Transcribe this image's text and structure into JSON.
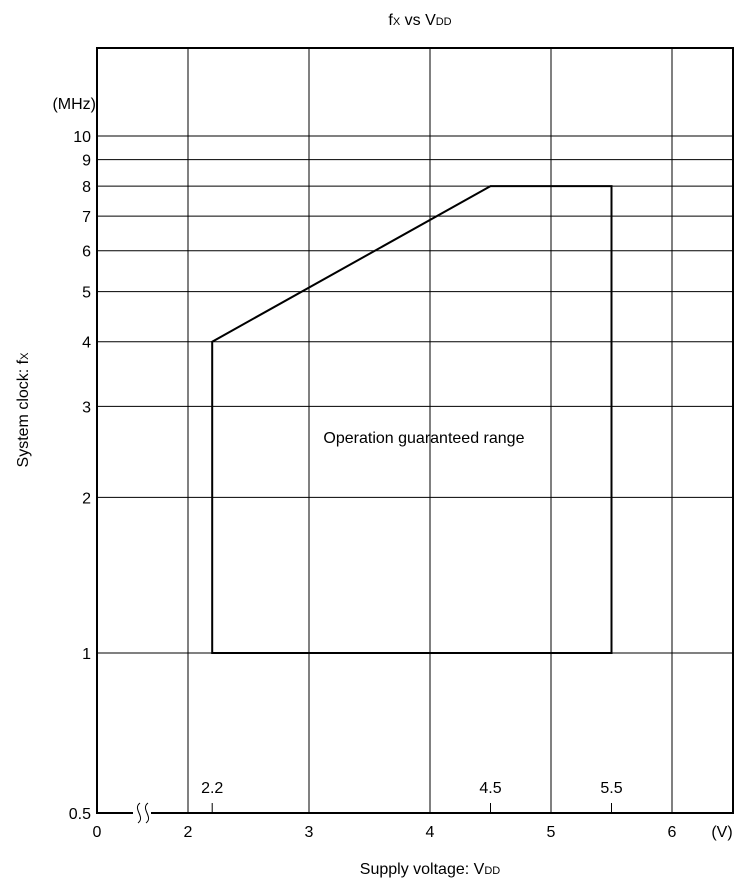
{
  "chart_data": {
    "type": "area",
    "title": "fx vs VDD",
    "title_parts": {
      "main": "f",
      "sub1": "X",
      "mid": " vs V",
      "sub2": "DD"
    },
    "xlabel": "Supply voltage: VDD",
    "xlabel_parts": {
      "main": "Supply voltage: V",
      "sub": "DD"
    },
    "ylabel": "System clock: fX",
    "ylabel_parts": {
      "main": "System clock: f",
      "sub": "X"
    },
    "x_unit": "(V)",
    "y_unit": "(MHz)",
    "y_scale": "log",
    "x_axis_break": true,
    "xlim": [
      0,
      6.5
    ],
    "ylim": [
      0.5,
      18
    ],
    "grid": true,
    "x_ticks": [
      {
        "value": 0,
        "label": "0"
      },
      {
        "value": 2,
        "label": "2"
      },
      {
        "value": 3,
        "label": "3"
      },
      {
        "value": 4,
        "label": "4"
      },
      {
        "value": 5,
        "label": "5"
      },
      {
        "value": 6,
        "label": "6"
      }
    ],
    "y_ticks": [
      {
        "value": 0.5,
        "label": "0.5"
      },
      {
        "value": 1,
        "label": "1"
      },
      {
        "value": 2,
        "label": "2"
      },
      {
        "value": 3,
        "label": "3"
      },
      {
        "value": 4,
        "label": "4"
      },
      {
        "value": 5,
        "label": "5"
      },
      {
        "value": 6,
        "label": "6"
      },
      {
        "value": 7,
        "label": "7"
      },
      {
        "value": 8,
        "label": "8"
      },
      {
        "value": 9,
        "label": "9"
      },
      {
        "value": 10,
        "label": "10"
      }
    ],
    "series": [
      {
        "name": "Operation guaranteed range",
        "points": [
          {
            "x": 2.2,
            "y": 1
          },
          {
            "x": 2.2,
            "y": 4
          },
          {
            "x": 4.5,
            "y": 8
          },
          {
            "x": 5.5,
            "y": 8
          },
          {
            "x": 5.5,
            "y": 1
          }
        ]
      }
    ],
    "point_labels": [
      {
        "x": 2.2,
        "label": "2.2"
      },
      {
        "x": 4.5,
        "label": "4.5"
      },
      {
        "x": 5.5,
        "label": "5.5"
      }
    ],
    "annotation": {
      "text": "Operation guaranteed range",
      "x": 3.95,
      "y": 2.55
    }
  }
}
